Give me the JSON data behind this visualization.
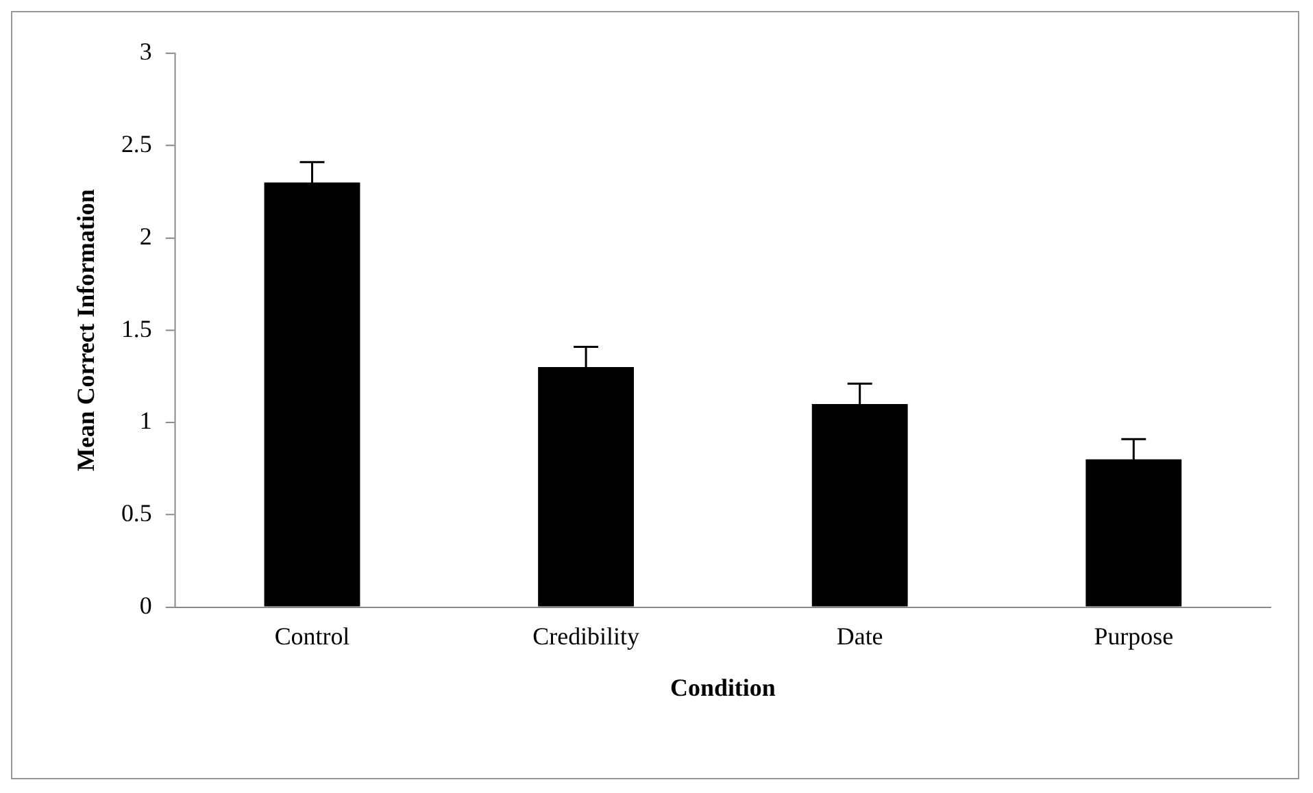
{
  "chart_data": {
    "type": "bar",
    "xlabel": "Condition",
    "ylabel": "Mean Correct Information",
    "categories": [
      "Control",
      "Credibility",
      "Date",
      "Purpose"
    ],
    "values": [
      2.3,
      1.3,
      1.1,
      0.8
    ],
    "errors": [
      0.11,
      0.11,
      0.11,
      0.11
    ],
    "color": "#000000",
    "ylim": [
      0,
      3
    ],
    "yticks": [
      0,
      0.5,
      1,
      1.5,
      2,
      2.5,
      3
    ],
    "grid": false,
    "legend": false
  }
}
